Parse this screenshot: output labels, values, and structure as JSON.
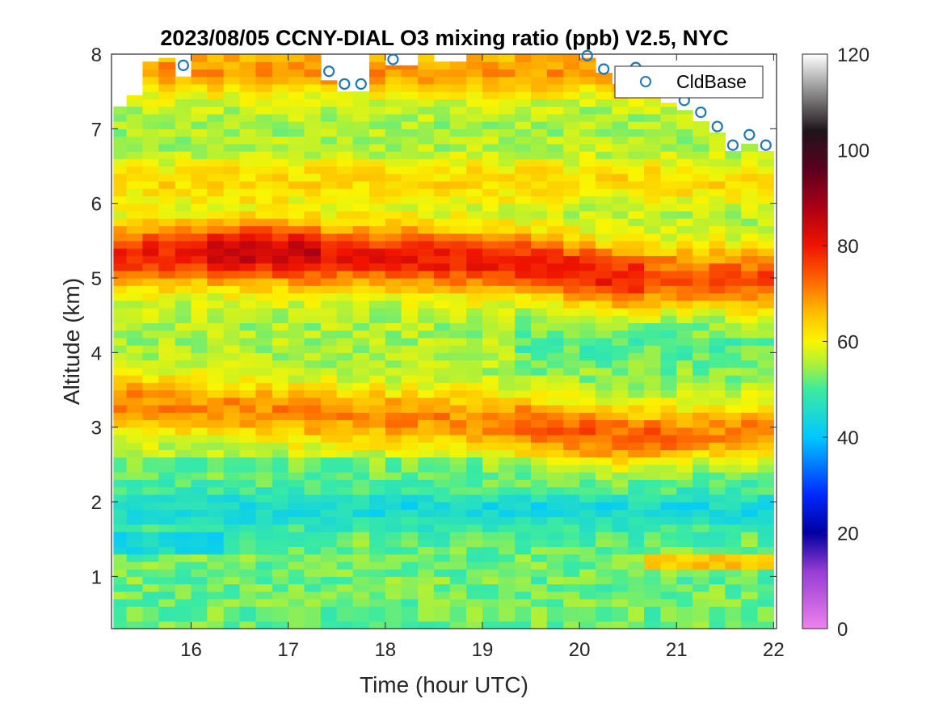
{
  "chart_data": {
    "type": "heatmap",
    "title": "2023/08/05 CCNY-DIAL O3 mixing ratio (ppb) V2.5, NYC",
    "xlabel": "Time (hour UTC)",
    "ylabel": "Altitude (km)",
    "xlim": [
      15.18,
      22.03
    ],
    "ylim": [
      0.3,
      8
    ],
    "xticks": [
      16,
      17,
      18,
      19,
      20,
      21,
      22
    ],
    "yticks": [
      1,
      2,
      3,
      4,
      5,
      6,
      7,
      8
    ],
    "colorbar": {
      "clim": [
        0,
        120
      ],
      "ticks": [
        0,
        20,
        40,
        60,
        80,
        100,
        120
      ],
      "colormap": "jet-like (pink-purple-blue-cyan-green-yellow-orange-red-darkred-black-white)"
    },
    "legend": {
      "entries": [
        "CldBase"
      ],
      "location": "top-right",
      "marker": "circle",
      "color": "#1f77b4"
    },
    "profile_times": [
      15.25,
      15.42,
      15.58,
      15.75,
      15.92,
      16.08,
      16.25,
      16.42,
      16.58,
      16.75,
      16.92,
      17.08,
      17.25,
      17.42,
      17.58,
      17.75,
      17.92,
      18.08,
      18.25,
      18.42,
      18.58,
      18.75,
      18.92,
      19.08,
      19.25,
      19.42,
      19.58,
      19.75,
      19.92,
      20.08,
      20.25,
      20.42,
      20.58,
      20.75,
      20.92,
      21.08,
      21.25,
      21.42,
      21.58,
      21.75,
      21.92
    ],
    "profile_top_km": [
      7.3,
      7.45,
      7.9,
      7.95,
      7.7,
      8,
      8,
      8,
      8,
      8,
      8,
      8,
      8,
      7.65,
      7.5,
      7.5,
      8,
      7.85,
      7.85,
      8,
      7.9,
      7.9,
      8,
      8,
      8,
      8,
      8,
      8,
      8,
      7.95,
      7.75,
      7.6,
      7.55,
      7.5,
      7.35,
      7.25,
      7.1,
      6.95,
      6.7,
      6.8,
      6.7
    ],
    "layers": [
      {
        "name": "ozone peak upper",
        "altitude_km_by_time": [
          [
            15.2,
            5.3
          ],
          [
            16.5,
            5.35
          ],
          [
            18,
            5.3
          ],
          [
            19.5,
            5.2
          ],
          [
            20.5,
            5.0
          ],
          [
            22,
            5.0
          ]
        ],
        "peak_ppb": 82
      },
      {
        "name": "ozone peak middle",
        "altitude_km_by_time": [
          [
            15.2,
            3.35
          ],
          [
            17,
            3.2
          ],
          [
            19,
            3.1
          ],
          [
            20.5,
            2.85
          ],
          [
            22,
            3.0
          ]
        ],
        "peak_ppb": 73
      },
      {
        "name": "ozone minimum boundary layer",
        "altitude_km": 1.9,
        "min_ppb": 45
      }
    ],
    "cloud_base": {
      "name": "CldBase",
      "x": [
        15.92,
        17.42,
        17.58,
        17.75,
        18.08,
        20.08,
        20.25,
        20.58,
        21.08,
        21.25,
        21.42,
        21.58,
        21.75,
        21.92
      ],
      "y": [
        7.85,
        7.77,
        7.6,
        7.6,
        7.93,
        7.98,
        7.8,
        7.82,
        7.38,
        7.22,
        7.03,
        6.78,
        6.92,
        6.78
      ]
    }
  }
}
